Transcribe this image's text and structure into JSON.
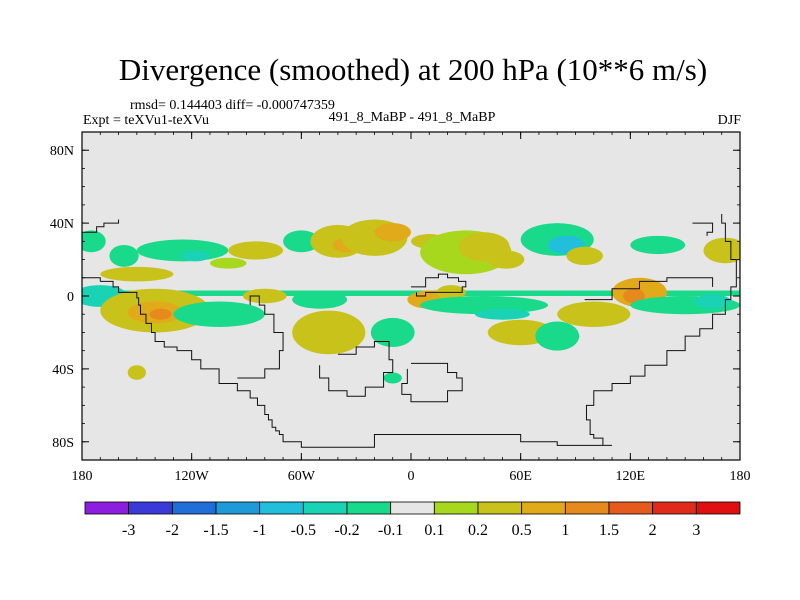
{
  "chart_data": {
    "type": "contour-map",
    "title": "Divergence (smoothed) at 200 hPa (10**6 m/s)",
    "rmsd_text": "rmsd= 0.144403 diff= -0.000747359",
    "expt_text": "Expt = teXVu1-teXVu",
    "case_text": "491_8_MaBP - 491_8_MaBP",
    "season": "DJF",
    "projection": "cylindrical equidistant",
    "lon_range": [
      -180,
      180
    ],
    "lat_range": [
      -90,
      90
    ],
    "x_ticks": [
      {
        "value": -180,
        "label": "180"
      },
      {
        "value": -120,
        "label": "120W"
      },
      {
        "value": -60,
        "label": "60W"
      },
      {
        "value": 0,
        "label": "0"
      },
      {
        "value": 60,
        "label": "60E"
      },
      {
        "value": 120,
        "label": "120E"
      },
      {
        "value": 180,
        "label": "180"
      }
    ],
    "y_ticks": [
      {
        "value": 80,
        "label": "80N"
      },
      {
        "value": 40,
        "label": "40N"
      },
      {
        "value": 0,
        "label": "0"
      },
      {
        "value": -40,
        "label": "40S"
      },
      {
        "value": -80,
        "label": "80S"
      }
    ],
    "colorbar": {
      "labels": [
        "-3",
        "-2",
        "-1.5",
        "-1",
        "-0.5",
        "-0.2",
        "-0.1",
        "0.1",
        "0.2",
        "0.5",
        "1",
        "1.5",
        "2",
        "3"
      ],
      "colors": [
        "#8c1ee0",
        "#3a3ad8",
        "#1f6ed9",
        "#1f9ad9",
        "#22bfdc",
        "#1ad3b4",
        "#18da8a",
        "#e6e6e6",
        "#a8d81e",
        "#c9c21a",
        "#e0aa1a",
        "#e68a1e",
        "#e65a1e",
        "#e02a1a",
        "#e01010"
      ]
    },
    "contour_blobs": [
      {
        "lon": -157,
        "lat": 22,
        "rx": 8,
        "ry": 6,
        "cat": 6
      },
      {
        "lon": -150,
        "lat": 12,
        "rx": 20,
        "ry": 4,
        "cat": 9
      },
      {
        "lon": -125,
        "lat": 25,
        "rx": 25,
        "ry": 6,
        "cat": 6
      },
      {
        "lon": -118,
        "lat": 22,
        "rx": 8,
        "ry": 3,
        "cat": 5
      },
      {
        "lon": -85,
        "lat": 25,
        "rx": 15,
        "ry": 5,
        "cat": 9
      },
      {
        "lon": -100,
        "lat": 18,
        "rx": 10,
        "ry": 3,
        "cat": 8
      },
      {
        "lon": -60,
        "lat": 30,
        "rx": 10,
        "ry": 6,
        "cat": 6
      },
      {
        "lon": -40,
        "lat": 30,
        "rx": 15,
        "ry": 9,
        "cat": 9
      },
      {
        "lon": -35,
        "lat": 28,
        "rx": 8,
        "ry": 4,
        "cat": 10
      },
      {
        "lon": -20,
        "lat": 32,
        "rx": 18,
        "ry": 10,
        "cat": 9
      },
      {
        "lon": -10,
        "lat": 35,
        "rx": 10,
        "ry": 5,
        "cat": 10
      },
      {
        "lon": 10,
        "lat": 30,
        "rx": 10,
        "ry": 4,
        "cat": 9
      },
      {
        "lon": 25,
        "lat": 28,
        "rx": 8,
        "ry": 6,
        "cat": 6
      },
      {
        "lon": 30,
        "lat": 24,
        "rx": 25,
        "ry": 12,
        "cat": 8
      },
      {
        "lon": 40,
        "lat": 27,
        "rx": 14,
        "ry": 8,
        "cat": 9
      },
      {
        "lon": 52,
        "lat": 20,
        "rx": 10,
        "ry": 5,
        "cat": 9
      },
      {
        "lon": 80,
        "lat": 31,
        "rx": 20,
        "ry": 9,
        "cat": 6
      },
      {
        "lon": 85,
        "lat": 28,
        "rx": 10,
        "ry": 5,
        "cat": 4
      },
      {
        "lon": 95,
        "lat": 22,
        "rx": 10,
        "ry": 5,
        "cat": 9
      },
      {
        "lon": 135,
        "lat": 28,
        "rx": 15,
        "ry": 5,
        "cat": 6
      },
      {
        "lon": 172,
        "lat": 25,
        "rx": 12,
        "ry": 7,
        "cat": 9
      },
      {
        "lon": -175,
        "lat": 30,
        "rx": 8,
        "ry": 6,
        "cat": 6
      },
      {
        "lon": -170,
        "lat": 0,
        "rx": 15,
        "ry": 6,
        "cat": 5
      },
      {
        "lon": -140,
        "lat": -8,
        "rx": 30,
        "ry": 12,
        "cat": 9
      },
      {
        "lon": -140,
        "lat": -9,
        "rx": 15,
        "ry": 6,
        "cat": 10
      },
      {
        "lon": -137,
        "lat": -10,
        "rx": 6,
        "ry": 3,
        "cat": 11
      },
      {
        "lon": -105,
        "lat": -10,
        "rx": 25,
        "ry": 7,
        "cat": 6
      },
      {
        "lon": -80,
        "lat": 0,
        "rx": 12,
        "ry": 4,
        "cat": 9
      },
      {
        "lon": -50,
        "lat": -2,
        "rx": 15,
        "ry": 5,
        "cat": 6
      },
      {
        "lon": -45,
        "lat": -20,
        "rx": 20,
        "ry": 12,
        "cat": 9
      },
      {
        "lon": -10,
        "lat": -20,
        "rx": 12,
        "ry": 8,
        "cat": 6
      },
      {
        "lon": 10,
        "lat": -2,
        "rx": 12,
        "ry": 5,
        "cat": 10
      },
      {
        "lon": 22,
        "lat": 2,
        "rx": 8,
        "ry": 4,
        "cat": 9
      },
      {
        "lon": 40,
        "lat": -5,
        "rx": 35,
        "ry": 5,
        "cat": 6
      },
      {
        "lon": 50,
        "lat": -10,
        "rx": 15,
        "ry": 3,
        "cat": 5
      },
      {
        "lon": 60,
        "lat": -20,
        "rx": 18,
        "ry": 7,
        "cat": 9
      },
      {
        "lon": 80,
        "lat": -22,
        "rx": 12,
        "ry": 8,
        "cat": 6
      },
      {
        "lon": 100,
        "lat": -10,
        "rx": 20,
        "ry": 7,
        "cat": 9
      },
      {
        "lon": 125,
        "lat": 2,
        "rx": 15,
        "ry": 8,
        "cat": 10
      },
      {
        "lon": 122,
        "lat": 0,
        "rx": 6,
        "ry": 4,
        "cat": 11
      },
      {
        "lon": 150,
        "lat": -5,
        "rx": 30,
        "ry": 5,
        "cat": 6
      },
      {
        "lon": 165,
        "lat": -3,
        "rx": 10,
        "ry": 4,
        "cat": 5
      },
      {
        "lon": -150,
        "lat": -42,
        "rx": 5,
        "ry": 4,
        "cat": 9
      },
      {
        "lon": -10,
        "lat": -45,
        "rx": 5,
        "ry": 3,
        "cat": 6
      }
    ],
    "zero_lon_band": {
      "lat_from": 0,
      "lat_to": 3,
      "cat": 6
    },
    "continent_outlines": [
      [
        [
          -170,
          8
        ],
        [
          -165,
          8
        ],
        [
          -163,
          5
        ],
        [
          -160,
          2
        ],
        [
          -150,
          -1
        ],
        [
          -149,
          -5
        ],
        [
          -148,
          -10
        ],
        [
          -145,
          -15
        ],
        [
          -142,
          -20
        ],
        [
          -140,
          -25
        ],
        [
          -135,
          -28
        ],
        [
          -128,
          -30
        ],
        [
          -120,
          -35
        ],
        [
          -115,
          -40
        ],
        [
          -105,
          -48
        ],
        [
          -95,
          -52
        ],
        [
          -88,
          -56
        ],
        [
          -84,
          -60
        ],
        [
          -80,
          -65
        ],
        [
          -78,
          -68
        ],
        [
          -76,
          -72
        ],
        [
          -74,
          -74
        ],
        [
          -72,
          -76
        ],
        [
          -70,
          -80
        ],
        [
          -60,
          -83
        ],
        [
          -20,
          -76
        ],
        [
          20,
          -76
        ],
        [
          60,
          -80
        ],
        [
          80,
          -82
        ],
        [
          110,
          -82
        ],
        [
          105,
          -78
        ],
        [
          100,
          -76
        ],
        [
          98,
          -68
        ],
        [
          96,
          -60
        ],
        [
          100,
          -52
        ],
        [
          110,
          -48
        ],
        [
          120,
          -44
        ],
        [
          128,
          -38
        ],
        [
          140,
          -30
        ],
        [
          150,
          -22
        ],
        [
          158,
          -18
        ],
        [
          165,
          -10
        ],
        [
          172,
          -2
        ],
        [
          175,
          5
        ],
        [
          178,
          10
        ],
        [
          178,
          20
        ],
        [
          175,
          30
        ],
        [
          172,
          40
        ],
        [
          170,
          45
        ]
      ],
      [
        [
          -180,
          10
        ],
        [
          -172,
          10
        ],
        [
          -170,
          8
        ]
      ],
      [
        [
          -95,
          -45
        ],
        [
          -80,
          -40
        ],
        [
          -72,
          -30
        ],
        [
          -70,
          -20
        ],
        [
          -75,
          -10
        ],
        [
          -80,
          -5
        ],
        [
          -83,
          0
        ],
        [
          -88,
          -5
        ]
      ],
      [
        [
          -40,
          -32
        ],
        [
          -30,
          -28
        ],
        [
          -20,
          -25
        ],
        [
          -12,
          -35
        ],
        [
          -10,
          -42
        ],
        [
          -15,
          -50
        ],
        [
          -25,
          -55
        ],
        [
          -35,
          -52
        ],
        [
          -45,
          -45
        ],
        [
          -50,
          -38
        ]
      ],
      [
        [
          0,
          -37
        ],
        [
          10,
          -37
        ],
        [
          20,
          -42
        ],
        [
          25,
          -45
        ],
        [
          28,
          -52
        ],
        [
          20,
          -58
        ],
        [
          10,
          -58
        ],
        [
          0,
          -54
        ],
        [
          -5,
          -48
        ],
        [
          -2,
          -40
        ]
      ],
      [
        [
          0,
          5
        ],
        [
          8,
          10
        ],
        [
          15,
          12
        ],
        [
          20,
          10
        ],
        [
          26,
          8
        ],
        [
          30,
          5
        ],
        [
          28,
          2
        ],
        [
          18,
          2
        ],
        [
          8,
          0
        ],
        [
          3,
          2
        ]
      ],
      [
        [
          95,
          -2
        ],
        [
          110,
          4
        ],
        [
          125,
          8
        ],
        [
          140,
          10
        ],
        [
          155,
          10
        ],
        [
          165,
          5
        ]
      ],
      [
        [
          -180,
          35
        ],
        [
          -172,
          38
        ],
        [
          -168,
          40
        ],
        [
          -160,
          42
        ]
      ],
      [
        [
          154,
          40
        ],
        [
          165,
          40
        ],
        [
          165,
          35
        ],
        [
          162,
          33
        ]
      ]
    ]
  }
}
